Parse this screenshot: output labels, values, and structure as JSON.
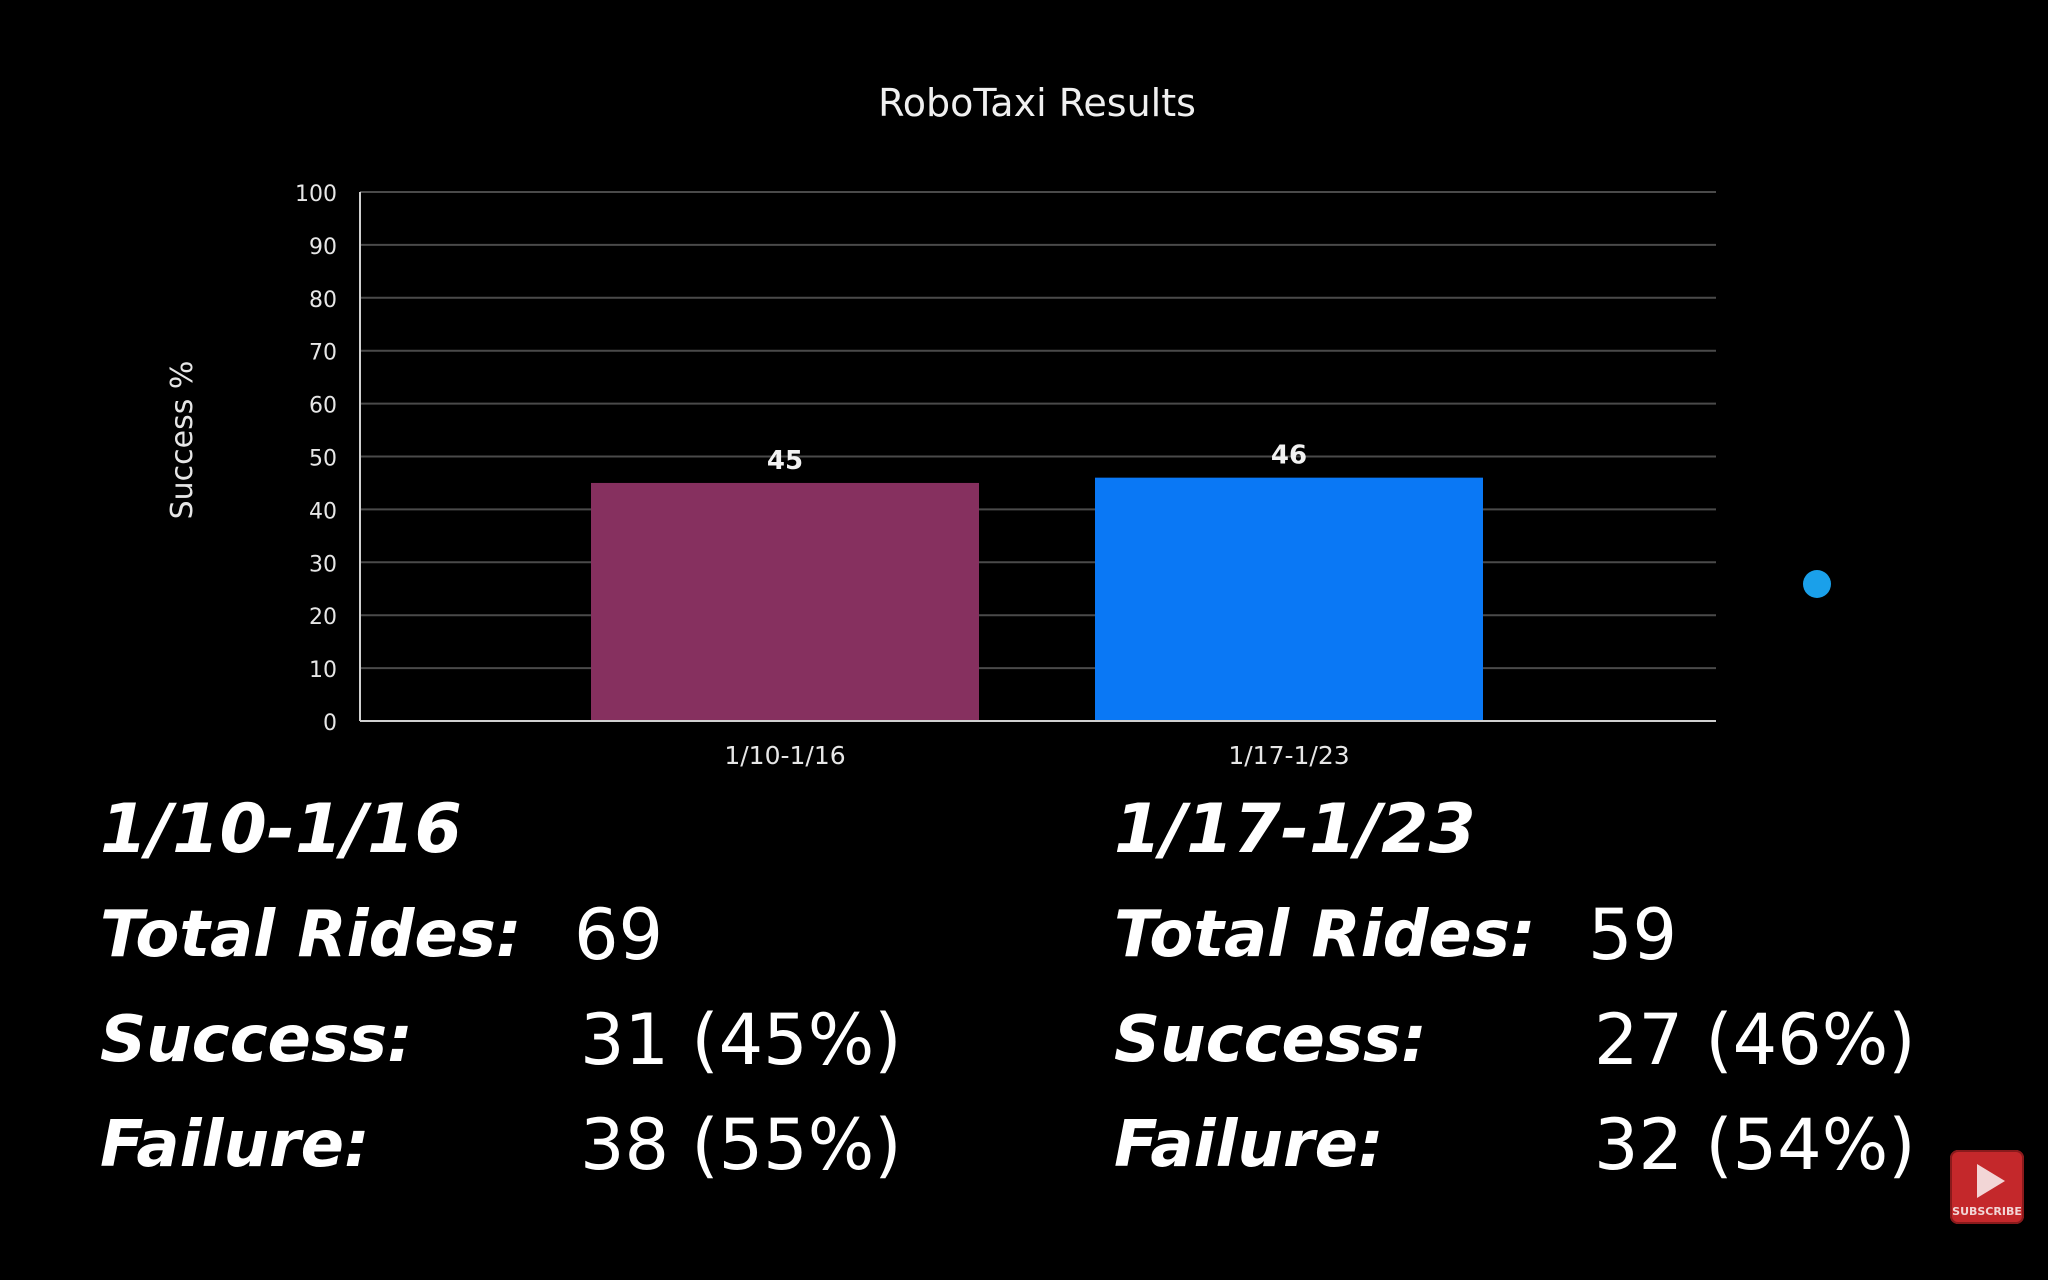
{
  "chart_data": {
    "type": "bar",
    "title": "RoboTaxi Results",
    "xlabel": "",
    "ylabel": "Success %",
    "ylim": [
      0,
      100
    ],
    "yticks": [
      0,
      10,
      20,
      30,
      40,
      50,
      60,
      70,
      80,
      90,
      100
    ],
    "categories": [
      "1/10-1/16",
      "1/17-1/23"
    ],
    "values": [
      45,
      46
    ],
    "data_labels": [
      "45",
      "46"
    ],
    "colors": [
      "#86305f",
      "#0a78f5"
    ],
    "grid": true,
    "legend": "none"
  },
  "stats": [
    {
      "range": "1/10-1/16",
      "total_label": "Total Rides:",
      "total_value": "69",
      "success_label": "Success:",
      "success_value": "31 (45%)",
      "failure_label": "Failure:",
      "failure_value": "38 (55%)"
    },
    {
      "range": "1/17-1/23",
      "total_label": "Total Rides:",
      "total_value": "59",
      "success_label": "Success:",
      "success_value": "27 (46%)",
      "failure_label": "Failure:",
      "failure_value": "32 (54%)"
    }
  ],
  "subscribe": {
    "label": "SUBSCRIBE",
    "icon": "play-icon"
  },
  "pointer": {
    "icon": "cursor-dot-icon",
    "color": "#1aa0ea"
  }
}
